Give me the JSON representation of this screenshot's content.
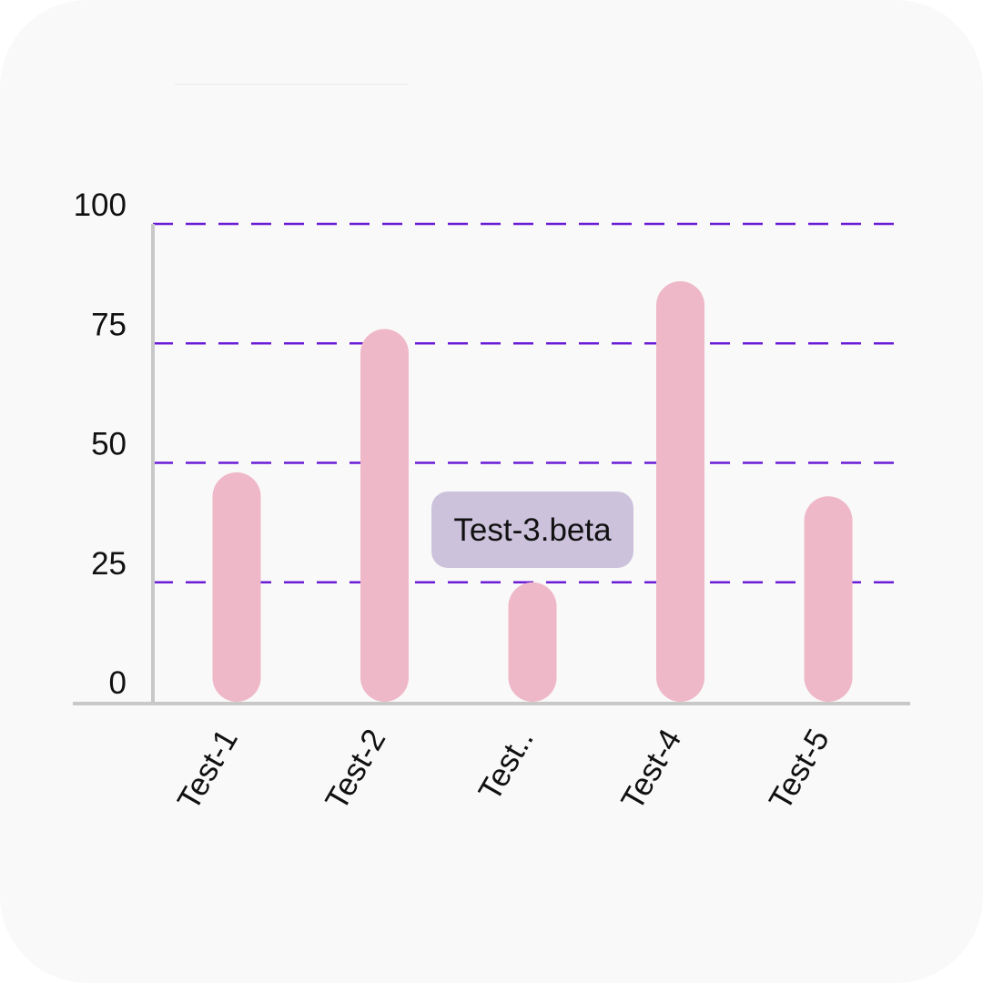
{
  "chart_data": {
    "type": "bar",
    "categories": [
      "Test-1",
      "Test-2",
      "Test...",
      "Test-4",
      "Test-5"
    ],
    "category_labels_display": [
      "Test-1",
      "Test-2",
      "Test..",
      "Test-4",
      "Test-5"
    ],
    "values": [
      48,
      78,
      25,
      88,
      43
    ],
    "ylim": [
      0,
      100
    ],
    "yticks": [
      0,
      25,
      50,
      75,
      100
    ],
    "grid": true,
    "tooltip": {
      "category_index": 2,
      "text": "Test-3.beta"
    },
    "colors": {
      "bar": "#efb8c8",
      "grid": "#6a1bd6",
      "axis": "#c8c8c8",
      "tooltip_bg": "#cdc2dc",
      "text": "#111111",
      "card": "#f9f9f9"
    }
  }
}
